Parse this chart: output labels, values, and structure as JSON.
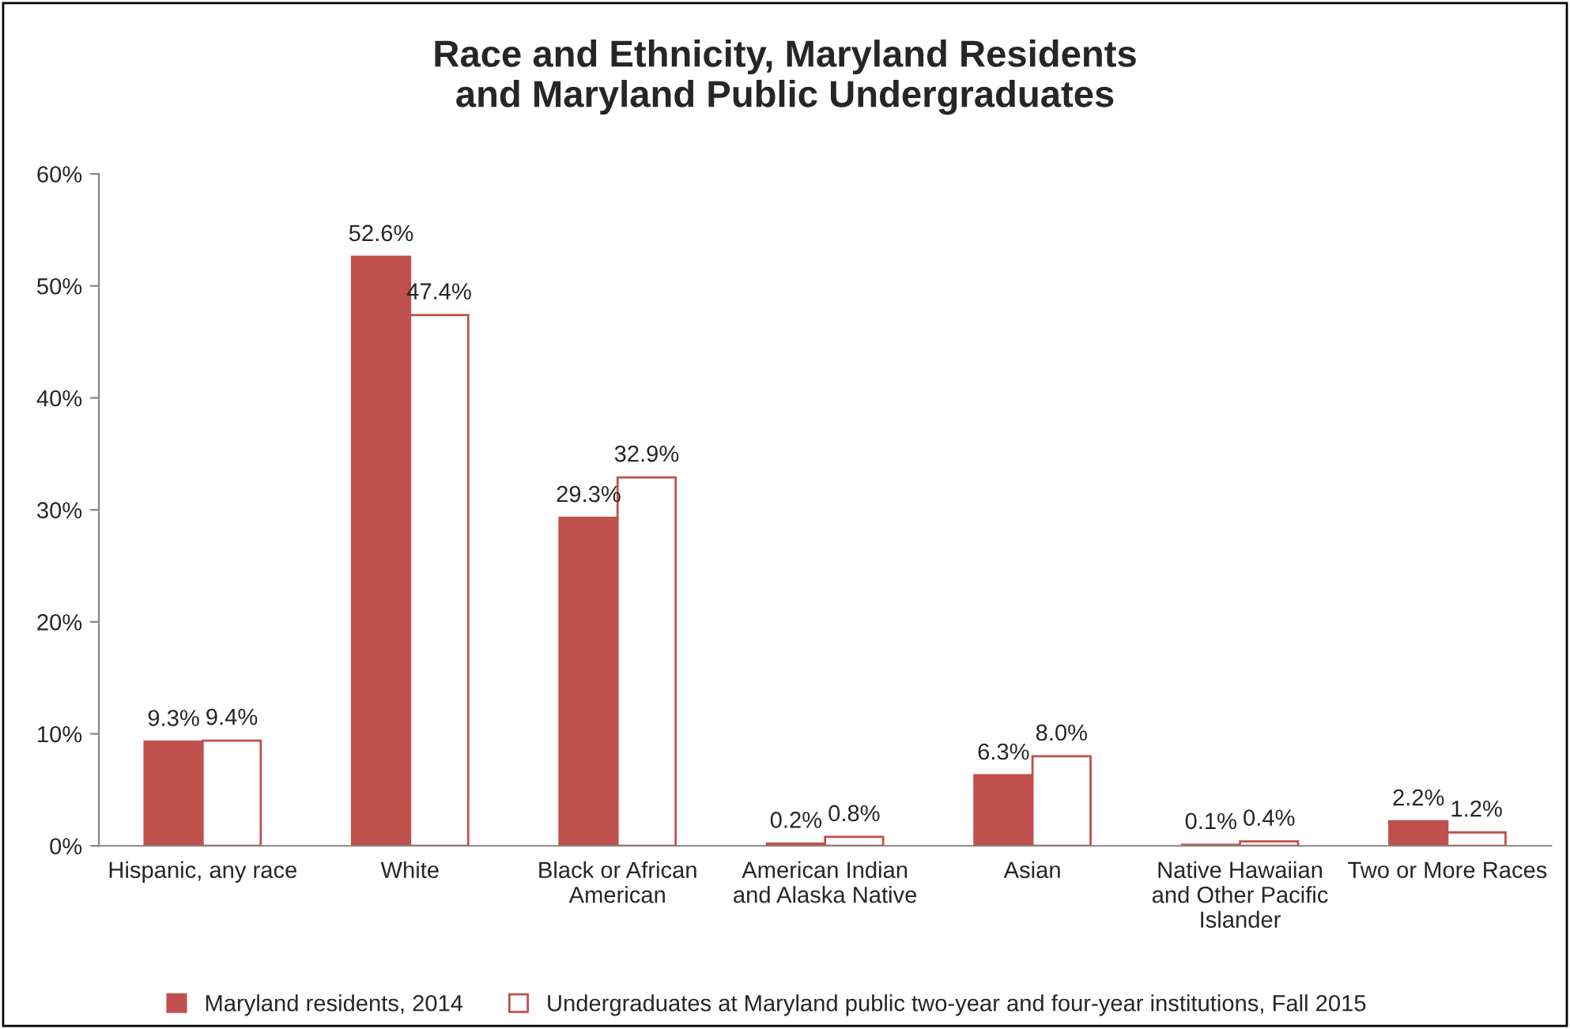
{
  "chart_data": {
    "type": "bar",
    "title": "Race and Ethnicity, Maryland Residents\nand Maryland Public Undergraduates",
    "categories": [
      "Hispanic, any race",
      "White",
      "Black or African\nAmerican",
      "American Indian\nand Alaska Native",
      "Asian",
      "Native Hawaiian\nand Other Pacific\nIslander",
      "Two or More Races"
    ],
    "series": [
      {
        "name": "Maryland residents, 2014",
        "color": "#c0504d",
        "values": [
          9.3,
          52.6,
          29.3,
          0.2,
          6.3,
          0.1,
          2.2
        ],
        "value_labels": [
          "9.3%",
          "52.6%",
          "29.3%",
          "0.2%",
          "6.3%",
          "0.1%",
          "2.2%"
        ]
      },
      {
        "name": "Undergraduates at Maryland public two-year and four-year institutions, Fall 2015",
        "color": "#ffffff",
        "values": [
          9.4,
          47.4,
          32.9,
          0.8,
          8.0,
          0.4,
          1.2
        ],
        "value_labels": [
          "9.4%",
          "47.4%",
          "32.9%",
          "0.8%",
          "8.0%",
          "0.4%",
          "1.2%"
        ]
      }
    ],
    "ylim": [
      0,
      60
    ],
    "yticks": [
      {
        "value": 0,
        "label": "0%"
      },
      {
        "value": 10,
        "label": "10%"
      },
      {
        "value": 20,
        "label": "20%"
      },
      {
        "value": 30,
        "label": "30%"
      },
      {
        "value": 40,
        "label": "40%"
      },
      {
        "value": 50,
        "label": "50%"
      },
      {
        "value": 60,
        "label": "60%"
      }
    ],
    "grid": false,
    "legend": "bottom"
  }
}
